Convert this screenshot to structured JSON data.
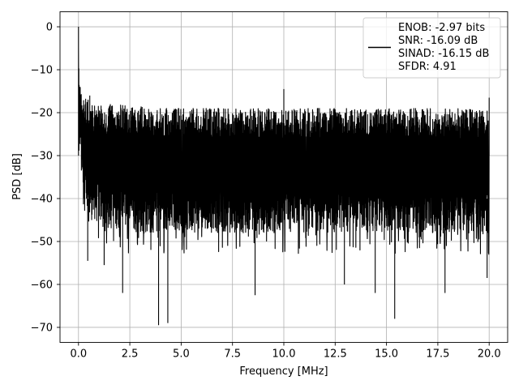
{
  "chart_data": {
    "type": "line",
    "xlabel": "Frequency [MHz]",
    "ylabel": "PSD [dB]",
    "xlim": [
      -0.9,
      20.9
    ],
    "ylim": [
      -73.5,
      3.5
    ],
    "xticks": [
      0.0,
      2.5,
      5.0,
      7.5,
      10.0,
      12.5,
      15.0,
      17.5,
      20.0
    ],
    "xtick_labels": [
      "0.0",
      "2.5",
      "5.0",
      "7.5",
      "10.0",
      "12.5",
      "15.0",
      "17.5",
      "20.0"
    ],
    "yticks": [
      0,
      -10,
      -20,
      -30,
      -40,
      -50,
      -60,
      -70
    ],
    "ytick_labels": [
      "0",
      "−10",
      "−20",
      "−30",
      "−40",
      "−50",
      "−60",
      "−70"
    ],
    "grid": true,
    "legend_position": "top-right",
    "series": [
      {
        "name": "ENOB: -2.97 bits\nSNR: -16.09 dB\nSINAD: -16.15 dB\nSFDR: 4.91",
        "color": "#000000",
        "x": [
          0.0,
          0.02,
          0.05,
          0.1,
          0.15,
          0.2,
          0.3,
          0.4,
          0.5,
          0.6,
          0.8,
          1.0,
          1.2,
          1.5,
          2.0,
          2.5,
          3.0,
          3.5,
          4.0,
          4.5,
          5.0,
          6.0,
          7.0,
          8.0,
          9.0,
          10.0,
          11.0,
          12.0,
          13.0,
          14.0,
          15.0,
          16.0,
          17.0,
          18.0,
          19.0,
          20.0
        ],
        "upper": [
          0,
          -6,
          -12,
          -14,
          -15,
          -16,
          -16.5,
          -17,
          -17,
          -17.5,
          -17.5,
          -18,
          -18,
          -18,
          -18,
          -18.5,
          -18.5,
          -19,
          -19,
          -19,
          -19,
          -19,
          -19,
          -19,
          -19,
          -19,
          -19,
          -19,
          -19,
          -19,
          -19,
          -19,
          -19,
          -19,
          -19,
          -19
        ],
        "lower": [
          -15,
          -30,
          -33,
          -33,
          -38,
          -40,
          -40,
          -42,
          -44,
          -45,
          -45,
          -46,
          -47,
          -47,
          -47,
          -48,
          -48,
          -48,
          -48,
          -48,
          -48,
          -48,
          -48,
          -48,
          -48,
          -48,
          -48,
          -48,
          -48,
          -48,
          -48,
          -48,
          -48,
          -48,
          -48,
          -48
        ],
        "peaks": [
          {
            "x": 0.0,
            "y": 0.0
          },
          {
            "x": 10.0,
            "y": -14.5
          },
          {
            "x": 20.0,
            "y": -16.5
          },
          {
            "x": 0.55,
            "y": -16.0
          }
        ],
        "dips": [
          {
            "x": 0.45,
            "y": -54.5
          },
          {
            "x": 1.25,
            "y": -55.5
          },
          {
            "x": 2.15,
            "y": -62.0
          },
          {
            "x": 3.9,
            "y": -69.5
          },
          {
            "x": 4.35,
            "y": -69.0
          },
          {
            "x": 8.6,
            "y": -62.5
          },
          {
            "x": 12.95,
            "y": -60.0
          },
          {
            "x": 14.45,
            "y": -62.0
          },
          {
            "x": 15.4,
            "y": -68.0
          },
          {
            "x": 17.85,
            "y": -62.0
          },
          {
            "x": 19.9,
            "y": -58.5
          }
        ]
      }
    ]
  }
}
